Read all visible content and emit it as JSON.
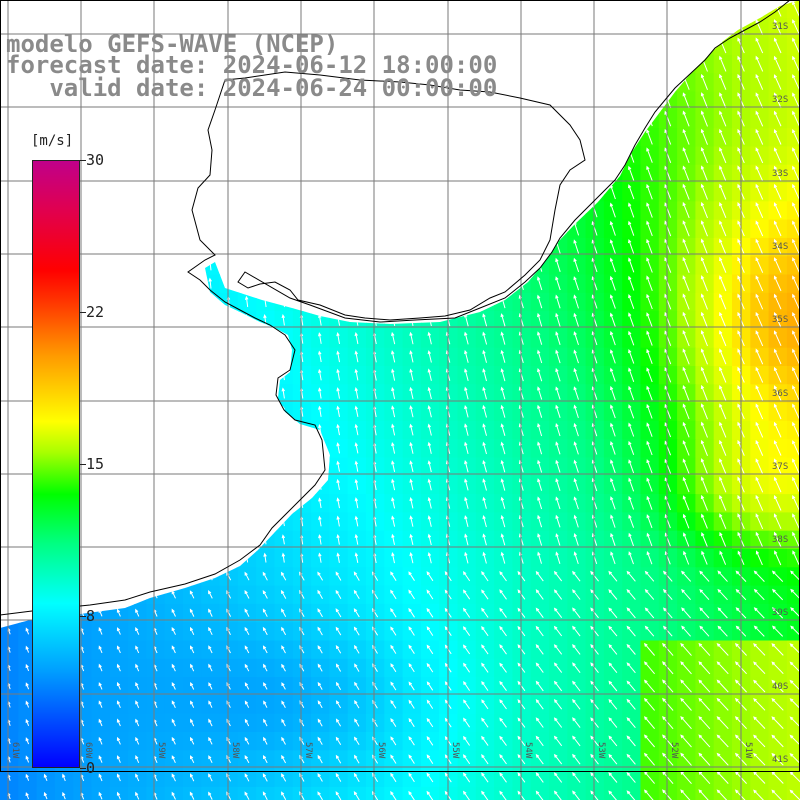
{
  "header": {
    "model": "modelo GEFS-WAVE (NCEP)",
    "forecast_date": "forecast date: 2024-06-12 18:00:00",
    "valid_date": "   valid date: 2024-06-24 00:00:00"
  },
  "colorbar": {
    "unit": "[m/s]",
    "ticks": [
      {
        "label": "30",
        "value": 30
      },
      {
        "label": "22",
        "value": 22
      },
      {
        "label": "15",
        "value": 15
      },
      {
        "label": "8",
        "value": 8
      },
      {
        "label": "0",
        "value": 0
      }
    ],
    "max": 30
  },
  "map": {
    "lat_labels": [
      "31S",
      "32S",
      "33S",
      "34S",
      "35S",
      "36S",
      "37S",
      "38S",
      "39S",
      "40S",
      "41S"
    ],
    "lon_labels": [
      "61W",
      "60W",
      "59W",
      "58W",
      "57W",
      "56W",
      "55W",
      "54W",
      "53W",
      "52W",
      "51W"
    ],
    "colors": {
      "land": "#ffffff",
      "coast": "#000000",
      "grid": "#7a7a7a",
      "arrow": "#ffffff"
    }
  }
}
